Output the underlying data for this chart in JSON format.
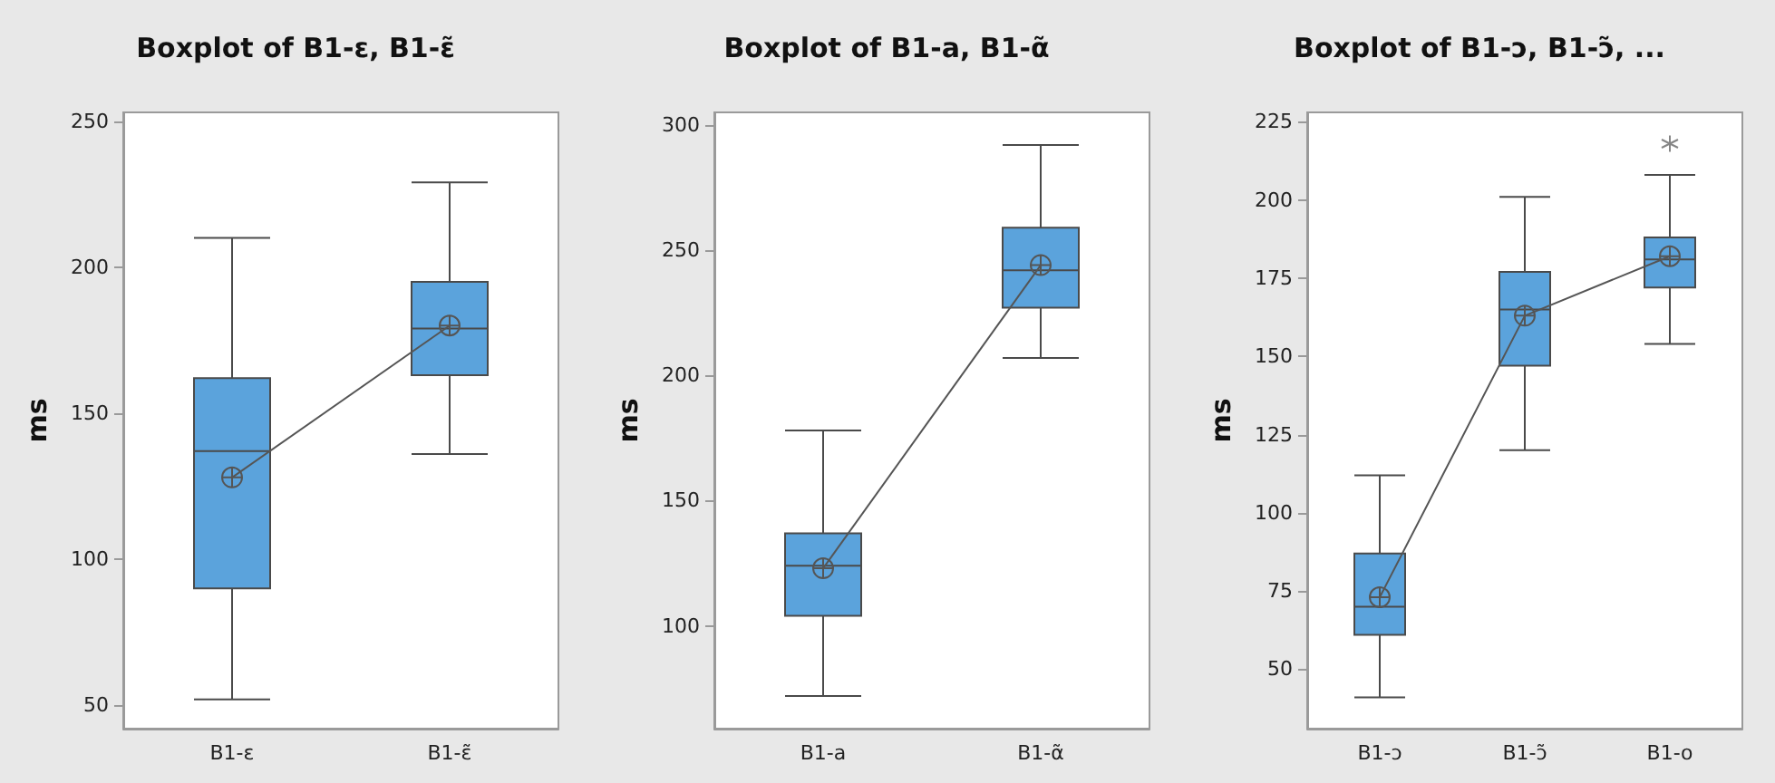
{
  "chart_data": [
    {
      "type": "box",
      "title": "Boxplot of B1-ε, B1-ε̃",
      "ylabel": "ms",
      "categories": [
        "B1-ε",
        "B1-ε̃"
      ],
      "ylim": [
        42,
        253
      ],
      "yticks": [
        50,
        100,
        150,
        200,
        250
      ],
      "grid": false,
      "series": [
        {
          "color": "#5ba3dc",
          "boxes": [
            {
              "low": 52,
              "q1": 90,
              "median": 137,
              "q3": 162,
              "high": 210
            },
            {
              "low": 136,
              "q1": 163,
              "median": 179,
              "q3": 195,
              "high": 229
            }
          ]
        },
        {
          "type": "line",
          "color": "#555555",
          "marker": "cross",
          "values": [
            128,
            180
          ]
        }
      ]
    },
    {
      "type": "box",
      "title": "Boxplot of B1-a, B1-α̃",
      "ylabel": "ms",
      "categories": [
        "B1-a",
        "B1-α̃"
      ],
      "ylim": [
        59,
        305
      ],
      "yticks": [
        100,
        150,
        200,
        250,
        300
      ],
      "grid": false,
      "series": [
        {
          "color": "#5ba3dc",
          "boxes": [
            {
              "low": 72,
              "q1": 104,
              "median": 124,
              "q3": 137,
              "high": 178
            },
            {
              "low": 207,
              "q1": 227,
              "median": 242,
              "q3": 259,
              "high": 292
            }
          ]
        },
        {
          "type": "line",
          "color": "#555555",
          "marker": "cross",
          "values": [
            123,
            244
          ]
        }
      ]
    },
    {
      "type": "box",
      "title": "Boxplot of B1-ɔ, B1-ɔ̃, ...",
      "ylabel": "ms",
      "categories": [
        "B1-ɔ",
        "B1-ɔ̃",
        "B1-o"
      ],
      "ylim": [
        31,
        228
      ],
      "yticks": [
        50,
        75,
        100,
        125,
        150,
        175,
        200,
        225
      ],
      "grid": false,
      "series": [
        {
          "color": "#5ba3dc",
          "boxes": [
            {
              "low": 41,
              "q1": 61,
              "median": 70,
              "q3": 87,
              "high": 112
            },
            {
              "low": 120,
              "q1": 147,
              "median": 165,
              "q3": 177,
              "high": 201
            },
            {
              "low": 154,
              "q1": 172,
              "median": 181,
              "q3": 188,
              "high": 208,
              "outliers": [
                218
              ]
            }
          ]
        },
        {
          "type": "line",
          "color": "#555555",
          "marker": "cross",
          "values": [
            73,
            163,
            182
          ]
        }
      ]
    }
  ]
}
